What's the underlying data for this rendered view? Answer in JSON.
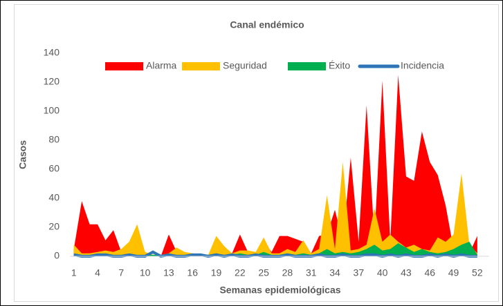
{
  "chart_data": {
    "type": "area",
    "title": "Canal endémico",
    "x_label": "Semanas epidemiológicas",
    "y_label": "Casos",
    "x": [
      1,
      2,
      3,
      4,
      5,
      6,
      7,
      8,
      9,
      10,
      11,
      12,
      13,
      14,
      15,
      16,
      17,
      18,
      19,
      20,
      21,
      22,
      23,
      24,
      25,
      26,
      27,
      28,
      29,
      30,
      31,
      32,
      33,
      34,
      35,
      36,
      37,
      38,
      39,
      40,
      41,
      42,
      43,
      44,
      45,
      46,
      47,
      48,
      49,
      50,
      51,
      52
    ],
    "xlim": [
      0.5,
      53.5
    ],
    "xticks": [
      1,
      4,
      7,
      10,
      13,
      16,
      19,
      22,
      25,
      28,
      31,
      34,
      37,
      40,
      43,
      46,
      49,
      52
    ],
    "ylim": [
      0,
      140
    ],
    "yticks": [
      0,
      20,
      40,
      60,
      80,
      100,
      120,
      140
    ],
    "grid": false,
    "legend": "top",
    "series": [
      {
        "name": "Alarma",
        "color": "#ff0000",
        "style": "area",
        "values": [
          5,
          38,
          22,
          22,
          11,
          18,
          3,
          3,
          2,
          1,
          1,
          0,
          15,
          3,
          2,
          1,
          1,
          1,
          5,
          3,
          2,
          15,
          3,
          2,
          10,
          3,
          14,
          14,
          12,
          10,
          2,
          14,
          15,
          32,
          10,
          68,
          10,
          104,
          12,
          121,
          10,
          125,
          55,
          52,
          86,
          65,
          56,
          35,
          5,
          3,
          2,
          14
        ]
      },
      {
        "name": "Seguridad",
        "color": "#ffc000",
        "style": "area",
        "values": [
          8,
          2,
          2,
          3,
          4,
          3,
          5,
          10,
          22,
          3,
          1,
          1,
          2,
          6,
          3,
          2,
          1,
          1,
          14,
          7,
          2,
          4,
          4,
          3,
          13,
          2,
          2,
          5,
          3,
          11,
          2,
          5,
          42,
          5,
          65,
          4,
          5,
          8,
          33,
          10,
          15,
          10,
          6,
          8,
          5,
          4,
          13,
          10,
          15,
          57,
          8,
          2
        ]
      },
      {
        "name": "Éxito",
        "color": "#00b050",
        "style": "area",
        "values": [
          2,
          1,
          1,
          1,
          2,
          1,
          1,
          1,
          1,
          1,
          1,
          1,
          1,
          1,
          1,
          1,
          1,
          1,
          2,
          1,
          1,
          2,
          1,
          1,
          3,
          1,
          1,
          2,
          1,
          2,
          1,
          2,
          5,
          2,
          3,
          2,
          3,
          5,
          8,
          4,
          5,
          9,
          6,
          3,
          5,
          3,
          2,
          3,
          5,
          8,
          10,
          1
        ]
      },
      {
        "name": "Incidencia",
        "color": "#2e75b6",
        "style": "line",
        "values": [
          1,
          0,
          0,
          1,
          1,
          0,
          0,
          1,
          0,
          0,
          3,
          0,
          1,
          0,
          0,
          1,
          1,
          0,
          1,
          0,
          1,
          0,
          0,
          1,
          0,
          0,
          0,
          1,
          0,
          0,
          0,
          1,
          0,
          0,
          1,
          0,
          0,
          1,
          1,
          0,
          1,
          0,
          1,
          0,
          0,
          1,
          0,
          1,
          0,
          1,
          0,
          0
        ]
      }
    ]
  }
}
